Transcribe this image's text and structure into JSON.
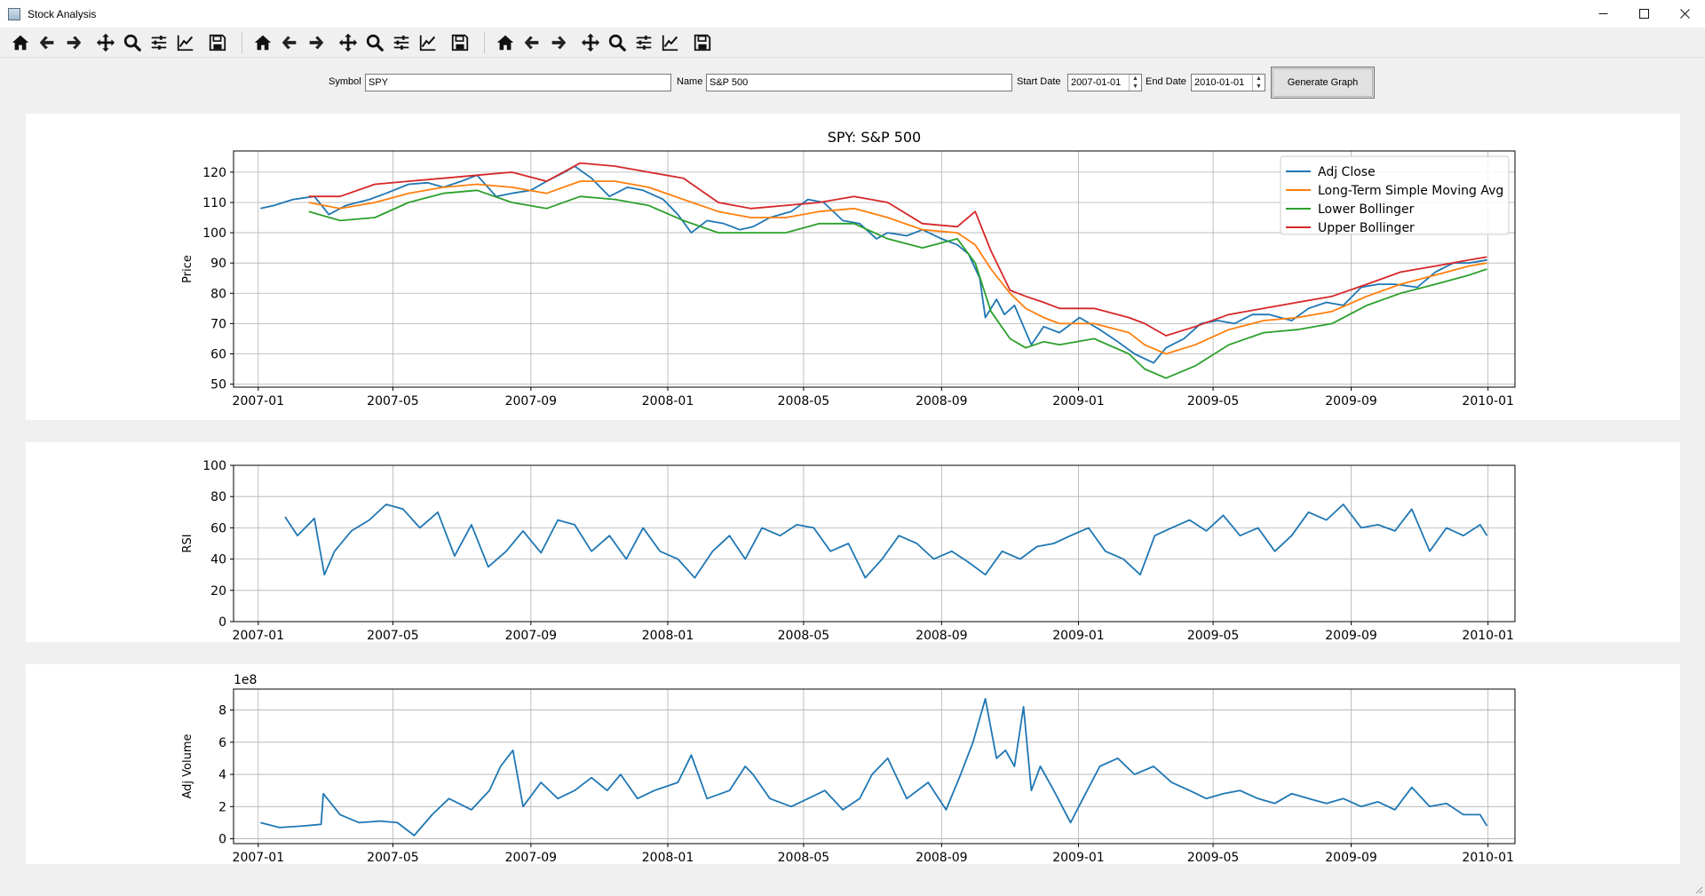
{
  "window": {
    "title": "Stock Analysis",
    "controls": [
      "minimize-icon",
      "maximize-icon",
      "close-icon"
    ]
  },
  "toolbar": {
    "groups": [
      [
        "home-icon",
        "back-arrow-icon",
        "forward-arrow-icon",
        "pan-icon",
        "zoom-icon",
        "configure-subplots-icon",
        "edit-axes-icon",
        "save-icon"
      ],
      [
        "home-icon",
        "back-arrow-icon",
        "forward-arrow-icon",
        "pan-icon",
        "zoom-icon",
        "configure-subplots-icon",
        "edit-axes-icon",
        "save-icon"
      ],
      [
        "home-icon",
        "back-arrow-icon",
        "forward-arrow-icon",
        "pan-icon",
        "zoom-icon",
        "configure-subplots-icon",
        "edit-axes-icon",
        "save-icon"
      ]
    ]
  },
  "form": {
    "symbol_label": "Symbol",
    "symbol_value": "SPY",
    "name_label": "Name",
    "name_value": "S&P 500",
    "start_label": "Start Date",
    "start_value": "2007-01-01",
    "end_label": "End Date",
    "end_value": "2010-01-01",
    "generate_label": "Generate Graph"
  },
  "colors": {
    "adj_close": "#1f77b4",
    "sma": "#ff7f0e",
    "lower": "#2ca02c",
    "upper": "#d62728",
    "grid": "#b0b0b0"
  },
  "chart_data": [
    {
      "type": "line",
      "title": "SPY: S&P 500",
      "ylabel": "Price",
      "xlabel": "",
      "xlim": [
        "2006-12-10",
        "2010-01-25"
      ],
      "ylim": [
        49,
        127
      ],
      "yticks": [
        50,
        60,
        70,
        80,
        90,
        100,
        110,
        120
      ],
      "xticks": [
        "2007-01",
        "2007-05",
        "2007-09",
        "2008-01",
        "2008-05",
        "2008-09",
        "2009-01",
        "2009-05",
        "2009-09",
        "2010-01"
      ],
      "grid": true,
      "legend_position": "top-right",
      "series": [
        {
          "name": "Adj Close",
          "x": [
            "2007-01-03",
            "2007-01-15",
            "2007-02-01",
            "2007-02-20",
            "2007-03-05",
            "2007-03-20",
            "2007-04-10",
            "2007-04-25",
            "2007-05-15",
            "2007-06-01",
            "2007-06-15",
            "2007-07-01",
            "2007-07-15",
            "2007-08-01",
            "2007-08-15",
            "2007-09-01",
            "2007-09-15",
            "2007-10-01",
            "2007-10-10",
            "2007-10-25",
            "2007-11-10",
            "2007-11-26",
            "2007-12-10",
            "2007-12-28",
            "2008-01-10",
            "2008-01-22",
            "2008-02-05",
            "2008-02-20",
            "2008-03-05",
            "2008-03-17",
            "2008-04-01",
            "2008-04-20",
            "2008-05-05",
            "2008-05-19",
            "2008-06-05",
            "2008-06-20",
            "2008-07-05",
            "2008-07-15",
            "2008-08-01",
            "2008-08-15",
            "2008-09-01",
            "2008-09-15",
            "2008-09-25",
            "2008-10-05",
            "2008-10-10",
            "2008-10-20",
            "2008-10-27",
            "2008-11-05",
            "2008-11-20",
            "2008-12-01",
            "2008-12-15",
            "2009-01-02",
            "2009-01-20",
            "2009-02-05",
            "2009-02-20",
            "2009-03-09",
            "2009-03-20",
            "2009-04-05",
            "2009-04-20",
            "2009-05-05",
            "2009-05-20",
            "2009-06-05",
            "2009-06-20",
            "2009-07-10",
            "2009-07-25",
            "2009-08-10",
            "2009-08-25",
            "2009-09-10",
            "2009-09-25",
            "2009-10-10",
            "2009-10-30",
            "2009-11-15",
            "2009-12-01",
            "2009-12-15",
            "2009-12-31"
          ],
          "y": [
            108,
            109,
            111,
            112,
            106,
            109,
            111,
            113,
            116,
            116.5,
            115,
            117,
            119,
            112,
            113,
            114,
            117,
            120,
            122,
            118,
            112,
            115,
            114,
            111,
            106,
            100,
            104,
            103,
            101,
            102,
            105,
            107,
            111,
            110,
            104,
            103,
            98,
            100,
            99,
            101,
            98,
            96,
            93,
            85,
            72,
            78,
            73,
            76,
            63,
            69,
            67,
            72,
            68,
            64,
            60,
            57,
            62,
            65,
            70,
            71,
            70,
            73,
            73,
            71,
            75,
            77,
            76,
            82,
            83,
            83,
            82,
            87,
            90,
            90,
            91
          ]
        },
        {
          "name": "Long-Term Simple Moving Avg",
          "x": [
            "2007-02-15",
            "2007-03-15",
            "2007-04-15",
            "2007-05-15",
            "2007-06-15",
            "2007-07-15",
            "2007-08-15",
            "2007-09-15",
            "2007-10-15",
            "2007-11-15",
            "2007-12-15",
            "2008-01-15",
            "2008-02-15",
            "2008-03-15",
            "2008-04-15",
            "2008-05-15",
            "2008-06-15",
            "2008-07-15",
            "2008-08-15",
            "2008-09-15",
            "2008-10-01",
            "2008-10-15",
            "2008-11-01",
            "2008-11-15",
            "2008-12-01",
            "2008-12-15",
            "2009-01-15",
            "2009-02-15",
            "2009-03-01",
            "2009-03-20",
            "2009-04-15",
            "2009-05-15",
            "2009-06-15",
            "2009-07-15",
            "2009-08-15",
            "2009-09-15",
            "2009-10-15",
            "2009-11-15",
            "2009-12-15",
            "2009-12-31"
          ],
          "y": [
            110,
            108,
            110,
            113,
            115,
            116,
            115,
            113,
            117,
            117,
            115,
            111,
            107,
            105,
            105,
            107,
            108,
            105,
            101,
            100,
            96,
            88,
            80,
            75,
            72,
            70,
            70,
            67,
            63,
            60,
            63,
            68,
            71,
            72,
            74,
            79,
            83,
            86,
            89,
            90
          ]
        },
        {
          "name": "Lower Bollinger",
          "x": [
            "2007-02-15",
            "2007-03-15",
            "2007-04-15",
            "2007-05-15",
            "2007-06-15",
            "2007-07-15",
            "2007-08-15",
            "2007-09-15",
            "2007-10-15",
            "2007-11-15",
            "2007-12-15",
            "2008-01-15",
            "2008-02-15",
            "2008-03-15",
            "2008-04-15",
            "2008-05-15",
            "2008-06-15",
            "2008-07-15",
            "2008-08-15",
            "2008-09-15",
            "2008-10-01",
            "2008-10-15",
            "2008-11-01",
            "2008-11-15",
            "2008-12-01",
            "2008-12-15",
            "2009-01-15",
            "2009-02-15",
            "2009-03-01",
            "2009-03-20",
            "2009-04-15",
            "2009-05-15",
            "2009-06-15",
            "2009-07-15",
            "2009-08-15",
            "2009-09-15",
            "2009-10-15",
            "2009-11-15",
            "2009-12-15",
            "2009-12-31"
          ],
          "y": [
            107,
            104,
            105,
            110,
            113,
            114,
            110,
            108,
            112,
            111,
            109,
            104,
            100,
            100,
            100,
            103,
            103,
            98,
            95,
            98,
            90,
            74,
            65,
            62,
            64,
            63,
            65,
            60,
            55,
            52,
            56,
            63,
            67,
            68,
            70,
            76,
            80,
            83,
            86,
            88
          ]
        },
        {
          "name": "Upper Bollinger",
          "x": [
            "2007-02-15",
            "2007-03-15",
            "2007-04-15",
            "2007-05-15",
            "2007-06-15",
            "2007-07-15",
            "2007-08-15",
            "2007-09-15",
            "2007-10-15",
            "2007-11-15",
            "2007-12-15",
            "2008-01-15",
            "2008-02-15",
            "2008-03-15",
            "2008-04-15",
            "2008-05-15",
            "2008-06-15",
            "2008-07-15",
            "2008-08-15",
            "2008-09-15",
            "2008-10-01",
            "2008-10-15",
            "2008-11-01",
            "2008-11-15",
            "2008-12-01",
            "2008-12-15",
            "2009-01-15",
            "2009-02-15",
            "2009-03-01",
            "2009-03-20",
            "2009-04-15",
            "2009-05-15",
            "2009-06-15",
            "2009-07-15",
            "2009-08-15",
            "2009-09-15",
            "2009-10-15",
            "2009-11-15",
            "2009-12-15",
            "2009-12-31"
          ],
          "y": [
            112,
            112,
            116,
            117,
            118,
            119,
            120,
            117,
            123,
            122,
            120,
            118,
            110,
            108,
            109,
            110,
            112,
            110,
            103,
            102,
            107,
            94,
            81,
            79,
            77,
            75,
            75,
            72,
            70,
            66,
            69,
            73,
            75,
            77,
            79,
            83,
            87,
            89,
            91,
            92
          ]
        }
      ]
    },
    {
      "type": "line",
      "title": "",
      "ylabel": "RSI",
      "xlabel": "",
      "xlim": [
        "2006-12-10",
        "2010-01-25"
      ],
      "ylim": [
        0,
        100
      ],
      "yticks": [
        0,
        20,
        40,
        60,
        80,
        100
      ],
      "xticks": [
        "2007-01",
        "2007-05",
        "2007-09",
        "2008-01",
        "2008-05",
        "2008-09",
        "2009-01",
        "2009-05",
        "2009-09",
        "2010-01"
      ],
      "grid": true,
      "series": [
        {
          "name": "",
          "x": [
            "2007-01-25",
            "2007-02-05",
            "2007-02-20",
            "2007-03-01",
            "2007-03-10",
            "2007-03-25",
            "2007-04-10",
            "2007-04-25",
            "2007-05-10",
            "2007-05-25",
            "2007-06-10",
            "2007-06-25",
            "2007-07-10",
            "2007-07-25",
            "2007-08-10",
            "2007-08-25",
            "2007-09-10",
            "2007-09-25",
            "2007-10-10",
            "2007-10-25",
            "2007-11-10",
            "2007-11-25",
            "2007-12-10",
            "2007-12-25",
            "2008-01-10",
            "2008-01-25",
            "2008-02-10",
            "2008-02-25",
            "2008-03-10",
            "2008-03-25",
            "2008-04-10",
            "2008-04-25",
            "2008-05-10",
            "2008-05-25",
            "2008-06-10",
            "2008-06-25",
            "2008-07-10",
            "2008-07-25",
            "2008-08-10",
            "2008-08-25",
            "2008-09-10",
            "2008-09-25",
            "2008-10-10",
            "2008-10-25",
            "2008-11-10",
            "2008-11-25",
            "2008-12-10",
            "2008-12-25",
            "2009-01-10",
            "2009-01-25",
            "2009-02-10",
            "2009-02-25",
            "2009-03-10",
            "2009-03-25",
            "2009-04-10",
            "2009-04-25",
            "2009-05-10",
            "2009-05-25",
            "2009-06-10",
            "2009-06-25",
            "2009-07-10",
            "2009-07-25",
            "2009-08-10",
            "2009-08-25",
            "2009-09-10",
            "2009-09-25",
            "2009-10-10",
            "2009-10-25",
            "2009-11-10",
            "2009-11-25",
            "2009-12-10",
            "2009-12-25",
            "2009-12-31"
          ],
          "y": [
            67,
            55,
            66,
            30,
            45,
            58,
            65,
            75,
            72,
            60,
            70,
            42,
            62,
            35,
            45,
            58,
            44,
            65,
            62,
            45,
            55,
            40,
            60,
            45,
            40,
            28,
            45,
            55,
            40,
            60,
            55,
            62,
            60,
            45,
            50,
            28,
            40,
            55,
            50,
            40,
            45,
            38,
            30,
            45,
            40,
            48,
            50,
            55,
            60,
            45,
            40,
            30,
            55,
            60,
            65,
            58,
            68,
            55,
            60,
            45,
            55,
            70,
            65,
            75,
            60,
            62,
            58,
            72,
            45,
            60,
            55,
            62,
            55
          ]
        }
      ]
    },
    {
      "type": "line",
      "title": "",
      "ylabel": "Adj Volume",
      "xlabel": "",
      "offset_label": "1e8",
      "xlim": [
        "2006-12-10",
        "2010-01-25"
      ],
      "ylim": [
        -0.3,
        9.3
      ],
      "yticks": [
        0,
        2,
        4,
        6,
        8
      ],
      "xticks": [
        "2007-01",
        "2007-05",
        "2007-09",
        "2008-01",
        "2008-05",
        "2008-09",
        "2009-01",
        "2009-05",
        "2009-09",
        "2010-01"
      ],
      "grid": true,
      "series": [
        {
          "name": "",
          "x": [
            "2007-01-03",
            "2007-01-20",
            "2007-02-10",
            "2007-02-26",
            "2007-02-28",
            "2007-03-15",
            "2007-04-01",
            "2007-04-20",
            "2007-05-05",
            "2007-05-20",
            "2007-06-05",
            "2007-06-20",
            "2007-07-10",
            "2007-07-26",
            "2007-08-05",
            "2007-08-16",
            "2007-08-25",
            "2007-09-10",
            "2007-09-25",
            "2007-10-10",
            "2007-10-25",
            "2007-11-08",
            "2007-11-20",
            "2007-12-05",
            "2007-12-20",
            "2008-01-10",
            "2008-01-22",
            "2008-02-05",
            "2008-02-25",
            "2008-03-10",
            "2008-03-17",
            "2008-04-01",
            "2008-04-20",
            "2008-05-05",
            "2008-05-20",
            "2008-06-05",
            "2008-06-20",
            "2008-07-01",
            "2008-07-15",
            "2008-08-01",
            "2008-08-20",
            "2008-09-05",
            "2008-09-18",
            "2008-09-29",
            "2008-10-10",
            "2008-10-20",
            "2008-10-28",
            "2008-11-05",
            "2008-11-13",
            "2008-11-20",
            "2008-11-28",
            "2008-12-10",
            "2008-12-25",
            "2009-01-05",
            "2009-01-20",
            "2009-02-05",
            "2009-02-20",
            "2009-03-09",
            "2009-03-25",
            "2009-04-10",
            "2009-04-25",
            "2009-05-10",
            "2009-05-25",
            "2009-06-10",
            "2009-06-25",
            "2009-07-10",
            "2009-07-25",
            "2009-08-10",
            "2009-08-25",
            "2009-09-10",
            "2009-09-25",
            "2009-10-10",
            "2009-10-25",
            "2009-11-10",
            "2009-11-25",
            "2009-12-10",
            "2009-12-25",
            "2009-12-31"
          ],
          "y": [
            1,
            0.7,
            0.8,
            0.9,
            2.8,
            1.5,
            1.0,
            1.1,
            1.0,
            0.2,
            1.5,
            2.5,
            1.8,
            3.0,
            4.5,
            5.5,
            2.0,
            3.5,
            2.5,
            3.0,
            3.8,
            3.0,
            4.0,
            2.5,
            3.0,
            3.5,
            5.2,
            2.5,
            3.0,
            4.5,
            4.0,
            2.5,
            2.0,
            2.5,
            3.0,
            1.8,
            2.5,
            4.0,
            5.0,
            2.5,
            3.5,
            1.8,
            4.0,
            6.0,
            8.7,
            5.0,
            5.5,
            4.5,
            8.2,
            3.0,
            4.5,
            3.0,
            1.0,
            2.5,
            4.5,
            5.0,
            4.0,
            4.5,
            3.5,
            3.0,
            2.5,
            2.8,
            3.0,
            2.5,
            2.2,
            2.8,
            2.5,
            2.2,
            2.5,
            2.0,
            2.3,
            1.8,
            3.2,
            2.0,
            2.2,
            1.5,
            1.5,
            0.8
          ]
        }
      ]
    }
  ]
}
